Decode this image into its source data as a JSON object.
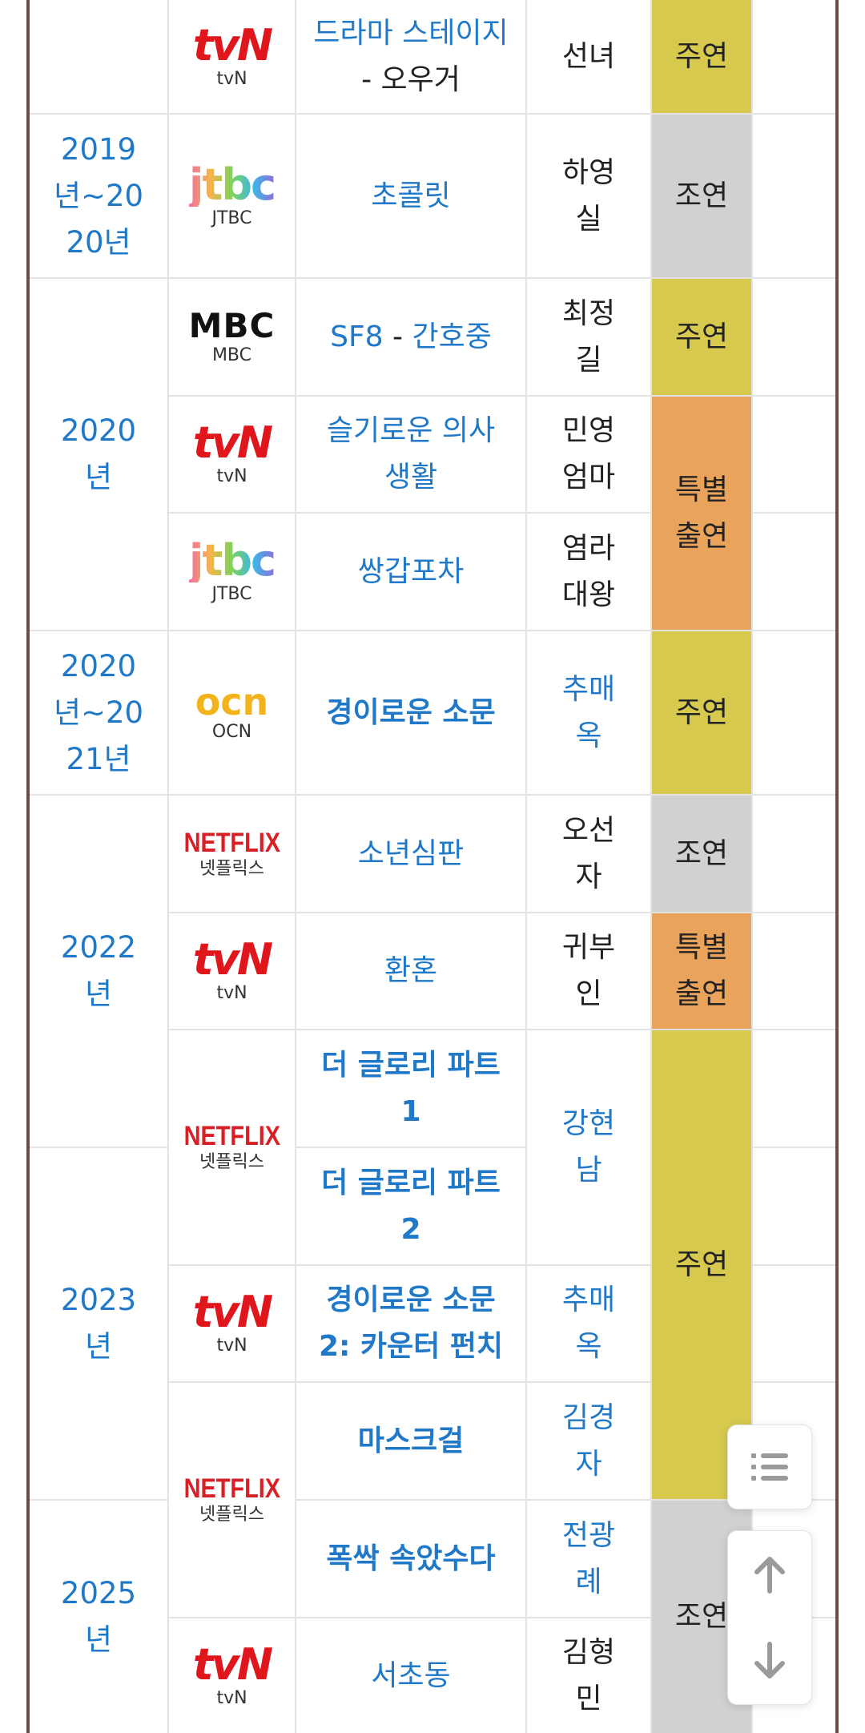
{
  "colors": {
    "link": "#1f78c8",
    "role_main": "#d6c94d",
    "role_supporting": "#d1d1d1",
    "role_special": "#e9a35a",
    "frame": "#6b4f45"
  },
  "years": [
    {
      "label": "2019\n년~20\n20년"
    },
    {
      "label": "2020\n년"
    },
    {
      "label": "2020\n년~20\n21년"
    },
    {
      "label": "2022\n년"
    },
    {
      "label": "2023\n년"
    },
    {
      "label": "2025\n년"
    }
  ],
  "networks": {
    "tvn": {
      "logo_text": "tvN",
      "caption": "tvN"
    },
    "jtbc": {
      "logo_text": "jtbc",
      "caption": "JTBC"
    },
    "mbc": {
      "logo_text": "MBC",
      "caption": "MBC"
    },
    "ocn": {
      "logo_text": "ocn",
      "caption": "OCN"
    },
    "netflix": {
      "logo_text": "NETFLIX",
      "caption": "넷플릭스"
    }
  },
  "rows": [
    {
      "title_a": "드라마 스테이지",
      "title_sep": " - ",
      "title_b": "오우거",
      "character": "선녀"
    },
    {
      "title": "초콜릿",
      "character": "하영\n실"
    },
    {
      "title_a": "SF8",
      "title_sep": " - ",
      "title_b": "간호중",
      "character": "최정\n길"
    },
    {
      "title": "슬기로운 의사\n생활",
      "character": "민영\n엄마"
    },
    {
      "title": "쌍갑포차",
      "character": "염라\n대왕"
    },
    {
      "title": "경이로운 소문",
      "character": "추매\n옥"
    },
    {
      "title": "소년심판",
      "character": "오선\n자"
    },
    {
      "title": "환혼",
      "character": "귀부\n인"
    },
    {
      "title": "더 글로리 파트\n1"
    },
    {
      "title": "더 글로리 파트\n2",
      "character": "강현\n남"
    },
    {
      "title": "경이로운 소문\n2: 카운터 펀치",
      "character": "추매\n옥"
    },
    {
      "title": "마스크걸",
      "character": "김경\n자"
    },
    {
      "title": "폭싹 속았수다",
      "character": "전광\n례"
    },
    {
      "title": "서초동",
      "character": "김형\n민"
    }
  ],
  "roles": {
    "main": "주연",
    "supporting": "조연",
    "special": "특별\n출연"
  },
  "floating_buttons": {
    "toc_icon": "list-icon",
    "up_icon": "arrow-up-icon",
    "down_icon": "arrow-down-icon"
  }
}
